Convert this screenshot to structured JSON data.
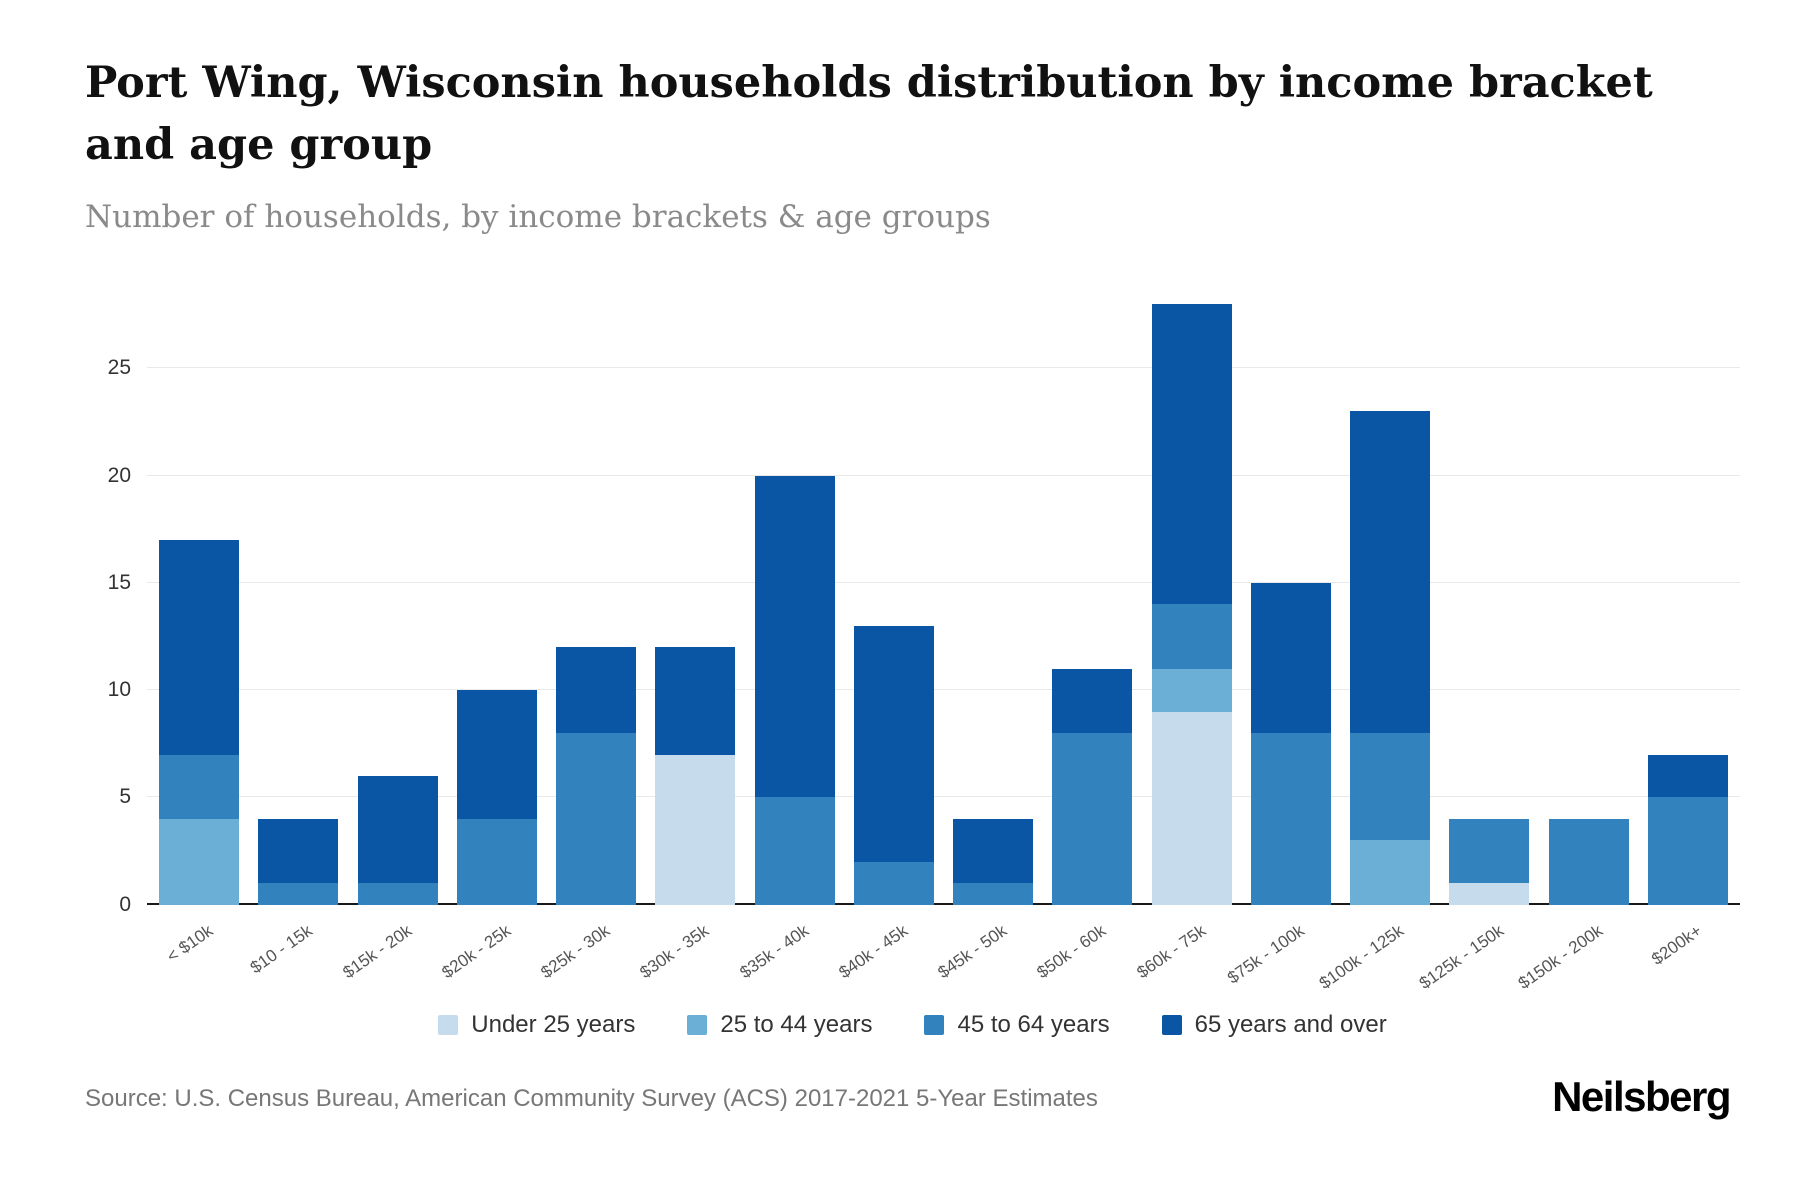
{
  "header": {
    "title": "Port Wing, Wisconsin households distribution by income bracket and age group",
    "subtitle": "Number of households, by income brackets & age groups"
  },
  "footer": {
    "source": "Source: U.S. Census Bureau, American Community Survey (ACS) 2017-2021 5-Year Estimates",
    "logo": "Neilsberg"
  },
  "chart_data": {
    "type": "bar",
    "stacked": true,
    "title": "Port Wing, Wisconsin households distribution by income bracket and age group",
    "subtitle": "Number of households, by income brackets & age groups",
    "xlabel": "",
    "ylabel": "Number of households",
    "ylim": [
      0,
      29
    ],
    "yticks": [
      0,
      5,
      10,
      15,
      20,
      25
    ],
    "grid": true,
    "legend_position": "bottom",
    "categories": [
      "< $10k",
      "$10 - 15k",
      "$15k - 20k",
      "$20k - 25k",
      "$25k - 30k",
      "$30k - 35k",
      "$35k - 40k",
      "$40k - 45k",
      "$45k - 50k",
      "$50k - 60k",
      "$60k - 75k",
      "$75k - 100k",
      "$100k - 125k",
      "$125k - 150k",
      "$150k - 200k",
      "$200k+"
    ],
    "series": [
      {
        "name": "Under 25 years",
        "color": "#c6dcec",
        "values": [
          0,
          0,
          0,
          0,
          0,
          7,
          0,
          0,
          0,
          0,
          9,
          0,
          0,
          1,
          0,
          0
        ]
      },
      {
        "name": "25 to 44 years",
        "color": "#6baed6",
        "values": [
          4,
          0,
          0,
          0,
          0,
          0,
          0,
          0,
          0,
          0,
          2,
          0,
          3,
          0,
          0,
          0
        ]
      },
      {
        "name": "45 to 64 years",
        "color": "#3182bd",
        "values": [
          3,
          1,
          1,
          4,
          8,
          0,
          5,
          2,
          1,
          8,
          3,
          8,
          5,
          3,
          4,
          5
        ]
      },
      {
        "name": "65 years and over",
        "color": "#0b56a4",
        "values": [
          10,
          3,
          5,
          6,
          4,
          5,
          15,
          11,
          3,
          3,
          14,
          7,
          15,
          0,
          0,
          2
        ]
      }
    ],
    "totals": [
      17,
      4,
      6,
      10,
      12,
      12,
      20,
      13,
      4,
      11,
      28,
      15,
      23,
      4,
      4,
      7
    ]
  }
}
